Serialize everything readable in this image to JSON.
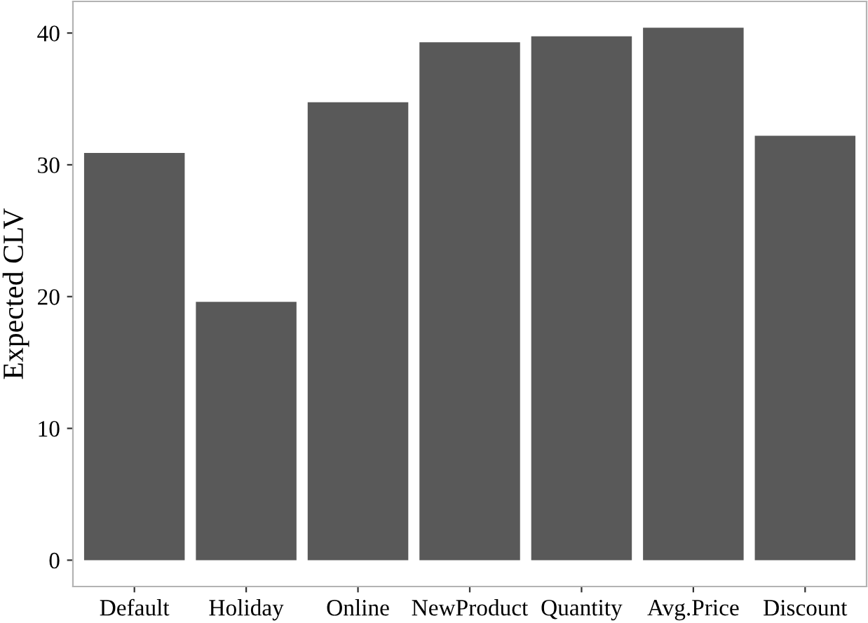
{
  "chart_data": {
    "type": "bar",
    "ylabel": "Expected CLV",
    "categories": [
      "Default",
      "Holiday",
      "Online",
      "NewProduct",
      "Quantity",
      "Avg.Price",
      "Discount"
    ],
    "values": [
      30.9,
      19.6,
      34.75,
      39.3,
      39.75,
      40.4,
      32.2
    ],
    "color": "#595959",
    "ylim": [
      -2,
      42.4
    ],
    "yticks": [
      0,
      10,
      20,
      30,
      40
    ],
    "grid": false
  }
}
